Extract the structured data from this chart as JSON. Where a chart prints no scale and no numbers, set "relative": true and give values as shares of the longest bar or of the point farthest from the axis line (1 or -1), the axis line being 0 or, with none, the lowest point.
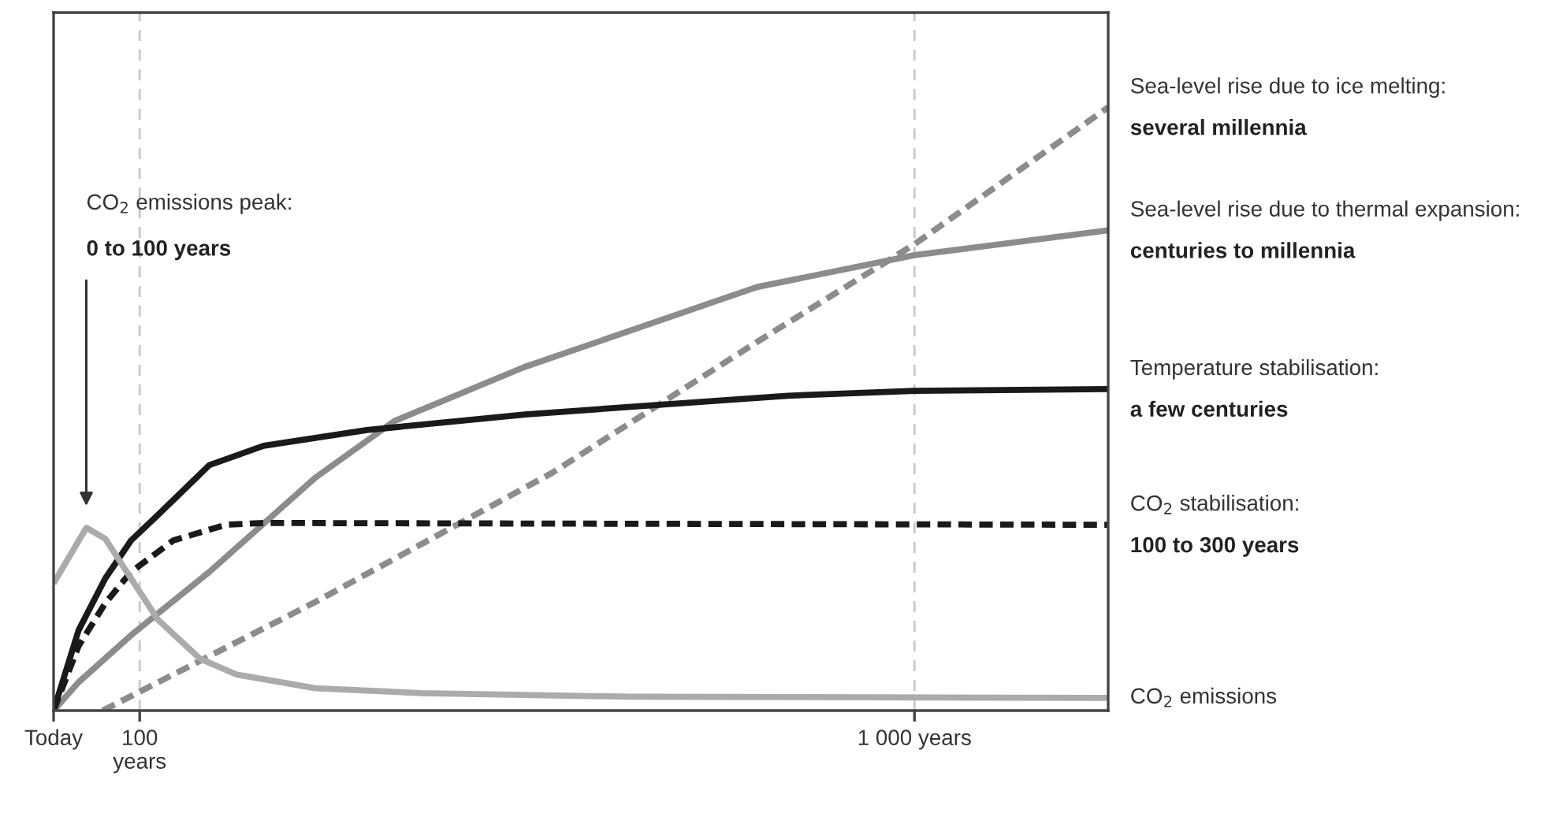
{
  "chart_data": {
    "type": "line",
    "relative": true,
    "xlim": [
      0,
      1225
    ],
    "xticks": [
      {
        "value": 0,
        "label": "Today"
      },
      {
        "value": 100,
        "label": "100\nyears"
      },
      {
        "value": 1000,
        "label": "1 000 years"
      }
    ],
    "grid": "x",
    "series": [
      {
        "name": "Sea-level rise due to ice melting:",
        "color": "#8c8c8c",
        "line_style": "dashed",
        "x": [
          57,
          304,
          579,
          817,
          1000,
          1225
        ],
        "values": [
          0,
          0.18,
          0.394,
          0.611,
          0.773,
          1.0
        ]
      },
      {
        "name": "Sea-level rise due to thermal expansion:",
        "color": "#8c8c8c",
        "line_style": "solid",
        "x": [
          0,
          29,
          90,
          181,
          304,
          396,
          546,
          817,
          1000,
          1225
        ],
        "values": [
          0,
          0.047,
          0.125,
          0.23,
          0.386,
          0.48,
          0.569,
          0.702,
          0.755,
          0.796
        ]
      },
      {
        "name": "Temperature stabilisation:",
        "color": "#1a1a1a",
        "line_style": "solid",
        "x": [
          0,
          29,
          60,
          90,
          121,
          181,
          244,
          364,
          548,
          853,
          1000,
          1225
        ],
        "values": [
          0,
          0.133,
          0.219,
          0.282,
          0.324,
          0.407,
          0.439,
          0.465,
          0.491,
          0.522,
          0.53,
          0.533
        ]
      },
      {
        "name": "CO$_{2}$ stabilisation:",
        "color": "#1a1a1a",
        "line_style": "dashed",
        "x": [
          0,
          29,
          60,
          90,
          139,
          200,
          244,
          1225
        ],
        "values": [
          0,
          0.107,
          0.178,
          0.23,
          0.282,
          0.308,
          0.311,
          0.308
        ]
      },
      {
        "name": "CO$_{2}$ emissions",
        "color": "#ababab",
        "line_style": "solid",
        "x": [
          0,
          38,
          60,
          90,
          121,
          170,
          212,
          304,
          427,
          670,
          1225
        ],
        "values": [
          0.211,
          0.303,
          0.285,
          0.219,
          0.151,
          0.086,
          0.06,
          0.037,
          0.029,
          0.023,
          0.021
        ]
      }
    ],
    "annotations": [
      "CO$_{2}$ emissions peak:",
      "0 to 100 years",
      "several millennia",
      "centuries to millennia",
      "a few centuries",
      "100 to 300 years"
    ]
  }
}
